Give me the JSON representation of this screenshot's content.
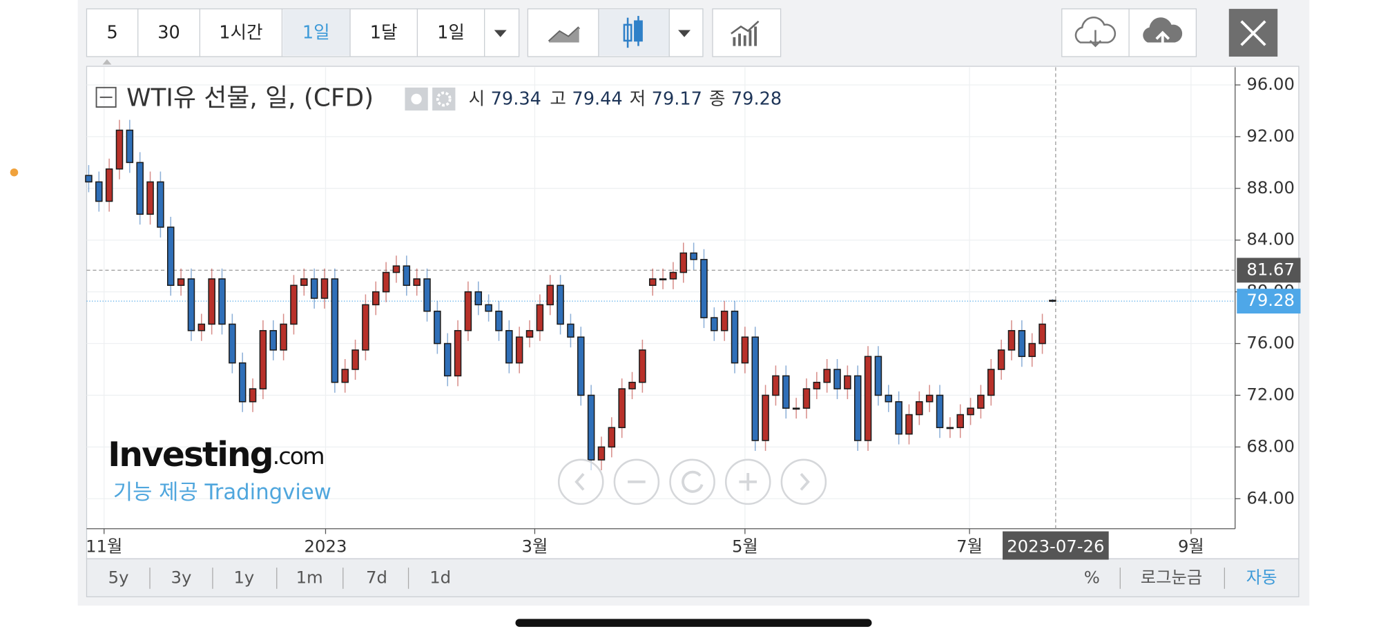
{
  "toolbar": {
    "intervals": [
      "5",
      "30",
      "1시간",
      "1일",
      "1달",
      "1일"
    ]
  },
  "chart_data": {
    "type": "candlestick",
    "title": "WTI유 선물, 일, (CFD)",
    "ohlc_legend": [
      {
        "label": "시",
        "value": 79.34
      },
      {
        "label": "고",
        "value": 79.44
      },
      {
        "label": "저",
        "value": 79.17
      },
      {
        "label": "종",
        "value": 79.28
      }
    ],
    "open": [
      89,
      88.5,
      87,
      89.5,
      92.5,
      90,
      86,
      88.5,
      85,
      80.5,
      81,
      77,
      77.5,
      81,
      77.5,
      74.5,
      71.5,
      72.5,
      77,
      75.5,
      77.5,
      80.5,
      81,
      79.5,
      81,
      73,
      74,
      75.5,
      79,
      80,
      81.5,
      82,
      80.5,
      81,
      78.5,
      76,
      73.5,
      77,
      80,
      79,
      78.5,
      77,
      74.5,
      76.5,
      77,
      79,
      80.5,
      77.5,
      76.5,
      72,
      67,
      68,
      69.5,
      72.5,
      73,
      80.5,
      81,
      81,
      81.5,
      83,
      82.5,
      78,
      77,
      78.5,
      74.5,
      76.5,
      68.5,
      72,
      73.5,
      71,
      71,
      72.5,
      73,
      74,
      72.5,
      73.5,
      68.5,
      75,
      72,
      71.5,
      69,
      70.5,
      71.5,
      72,
      69.5,
      69.5,
      70.5,
      71,
      72,
      74,
      75.5,
      77,
      75,
      76,
      79.34
    ],
    "high": [
      89.8,
      89.3,
      90.3,
      93.3,
      93.3,
      90.8,
      89.3,
      89.3,
      85.8,
      81.8,
      81.8,
      78.3,
      81.8,
      81.8,
      78.3,
      75.3,
      73.3,
      77.8,
      77.8,
      78.3,
      81.3,
      81.8,
      81.8,
      81.8,
      81.8,
      74.8,
      76.3,
      79.8,
      80.8,
      82.3,
      82.8,
      82.8,
      81.8,
      81.8,
      79.3,
      76.8,
      77.8,
      80.8,
      80.8,
      79.8,
      79.3,
      77.8,
      77.3,
      77.8,
      79.8,
      81.3,
      81.3,
      78.3,
      77.3,
      72.8,
      68.8,
      70.3,
      73.3,
      73.8,
      76.3,
      81.8,
      81.8,
      82.3,
      83.8,
      83.8,
      83.3,
      78.8,
      79.3,
      79.3,
      77.3,
      77.3,
      72.8,
      74.3,
      74.3,
      71.8,
      73.3,
      73.8,
      74.8,
      74.8,
      74.3,
      74.3,
      75.8,
      75.8,
      72.8,
      72.3,
      71.3,
      72.3,
      72.8,
      72.8,
      70.3,
      71.3,
      71.8,
      72.8,
      74.8,
      76.3,
      77.8,
      77.8,
      76.8,
      78.3,
      79.44
    ],
    "low": [
      87.7,
      86.2,
      86.2,
      88.7,
      89.2,
      85.2,
      85.2,
      84.2,
      79.7,
      79.7,
      76.2,
      76.2,
      76.7,
      76.7,
      73.7,
      70.7,
      70.7,
      71.7,
      74.7,
      74.7,
      76.7,
      79.7,
      78.7,
      78.7,
      72.2,
      72.2,
      73.2,
      74.7,
      78.2,
      79.2,
      80.7,
      79.7,
      79.7,
      77.7,
      75.2,
      72.7,
      72.7,
      76.2,
      78.2,
      77.7,
      76.2,
      73.7,
      73.7,
      75.7,
      76.2,
      78.2,
      76.7,
      75.7,
      71.2,
      66.2,
      66.2,
      67.2,
      68.7,
      71.7,
      72.2,
      79.7,
      80.2,
      80.2,
      80.7,
      81.7,
      77.2,
      76.2,
      76.2,
      73.7,
      73.7,
      67.7,
      67.7,
      71.2,
      70.2,
      70.2,
      70.2,
      71.7,
      72.2,
      71.7,
      71.7,
      67.7,
      67.7,
      71.2,
      70.7,
      68.2,
      68.2,
      69.7,
      70.7,
      68.7,
      68.7,
      68.7,
      69.7,
      70.2,
      71.2,
      73.2,
      74.7,
      74.2,
      74.2,
      75.2,
      79.17
    ],
    "close": [
      88.5,
      87,
      89.5,
      92.5,
      90,
      86,
      88.5,
      85,
      80.5,
      81,
      77,
      77.5,
      81,
      77.5,
      74.5,
      71.5,
      72.5,
      77,
      75.5,
      77.5,
      80.5,
      81,
      79.5,
      81,
      73,
      74,
      75.5,
      79,
      80,
      81.5,
      82,
      80.5,
      81,
      78.5,
      76,
      73.5,
      77,
      80,
      79,
      78.5,
      77,
      74.5,
      76.5,
      77,
      79,
      80.5,
      77.5,
      76.5,
      72,
      67,
      68,
      69.5,
      72.5,
      73,
      75.5,
      81,
      81,
      81.5,
      83,
      82.5,
      78,
      77,
      78.5,
      74.5,
      76.5,
      68.5,
      72,
      73.5,
      71,
      71,
      72.5,
      73,
      74,
      72.5,
      73.5,
      68.5,
      75,
      72,
      71.5,
      69,
      70.5,
      71.5,
      72,
      69.5,
      69.5,
      70.5,
      71,
      72,
      74,
      75.5,
      77,
      75,
      76,
      77.5,
      79.28
    ],
    "up_color": "#b8312a",
    "down_color": "#2f6fb8",
    "xlim": [
      -0.2,
      111.8
    ],
    "xticks": [
      {
        "value": 1.5,
        "label": "11월"
      },
      {
        "value": 23.1,
        "label": "2023"
      },
      {
        "value": 43.5,
        "label": "3월"
      },
      {
        "value": 64,
        "label": "5월"
      },
      {
        "value": 85.9,
        "label": "7월"
      },
      {
        "value": 107.5,
        "label": "9월"
      }
    ],
    "ylim": [
      61.68,
      97.37
    ],
    "yticks": [
      {
        "value": 64,
        "label": "64.00"
      },
      {
        "value": 68,
        "label": "68.00"
      },
      {
        "value": 72,
        "label": "72.00"
      },
      {
        "value": 76,
        "label": "76.00"
      },
      {
        "value": 80,
        "label": "80.00"
      },
      {
        "value": 84,
        "label": "84.00"
      },
      {
        "value": 88,
        "label": "88.00"
      },
      {
        "value": 92,
        "label": "92.00"
      },
      {
        "value": 96,
        "label": "96.00"
      }
    ],
    "grid": true,
    "last_price": 79.28,
    "crosshair": {
      "y": 81.67,
      "x": {
        "value": 94.3,
        "label": "2023-07-26"
      }
    }
  },
  "watermark": {
    "brand": "Investing",
    "suffix": ".com",
    "credit": "기능 제공 Tradingview"
  },
  "footer": {
    "ranges": [
      "5y",
      "3y",
      "1y",
      "1m",
      "7d",
      "1d"
    ],
    "options": [
      "%",
      "로그눈금",
      "자동"
    ]
  }
}
